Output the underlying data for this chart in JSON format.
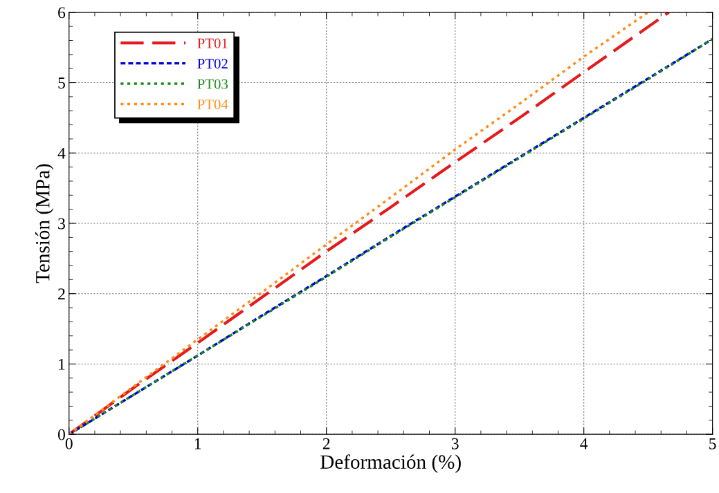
{
  "chart_data": {
    "type": "line",
    "xlabel": "Deformación (%)",
    "ylabel": "Tensión (MPa)",
    "xlim": [
      0,
      5
    ],
    "ylim": [
      0,
      6
    ],
    "xticks": [
      0,
      1,
      2,
      3,
      4,
      5
    ],
    "yticks": [
      0,
      1,
      2,
      3,
      4,
      5,
      6
    ],
    "grid": true,
    "legend": "top left",
    "marker": "none",
    "series": [
      {
        "name": "PT01",
        "color": "#e41a1c",
        "line_style": "dashed",
        "x": [
          0,
          0.5,
          1,
          1.5,
          2,
          2.5,
          3,
          3.5,
          4,
          4.66
        ],
        "values": [
          0,
          0.66,
          1.3,
          1.95,
          2.6,
          3.23,
          3.87,
          4.5,
          5.15,
          6
        ]
      },
      {
        "name": "PT02",
        "color": "#0000dd",
        "line_style": "dashed",
        "x": [
          0,
          0.5,
          1,
          1.5,
          2,
          2.5,
          3,
          3.5,
          4,
          4.5,
          5
        ],
        "values": [
          0,
          0.56,
          1.12,
          1.69,
          2.25,
          2.82,
          3.38,
          3.94,
          4.5,
          5.06,
          5.62
        ]
      },
      {
        "name": "PT03",
        "color": "#1a8a1a",
        "line_style": "dotted",
        "x": [
          0,
          0.5,
          1,
          1.5,
          2,
          2.5,
          3,
          3.5,
          4,
          4.5,
          5
        ],
        "values": [
          0,
          0.56,
          1.12,
          1.68,
          2.24,
          2.81,
          3.37,
          3.93,
          4.49,
          5.05,
          5.62
        ]
      },
      {
        "name": "PT04",
        "color": "#ff8c1a",
        "line_style": "dotted",
        "x": [
          0,
          0.5,
          1,
          1.5,
          2,
          2.5,
          3,
          3.5,
          4,
          4.5
        ],
        "values": [
          0,
          0.68,
          1.35,
          2.02,
          2.7,
          3.37,
          4.05,
          4.7,
          5.37,
          6
        ]
      }
    ]
  }
}
